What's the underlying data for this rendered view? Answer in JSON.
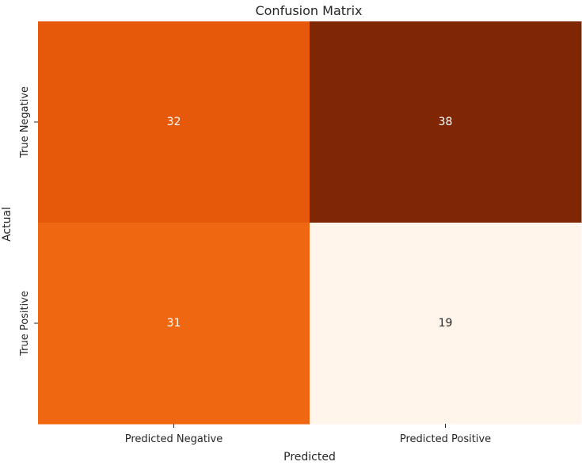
{
  "chart_data": {
    "type": "heatmap",
    "title": "Confusion Matrix",
    "xlabel": "Predicted",
    "ylabel": "Actual",
    "x_categories": [
      "Predicted Negative",
      "Predicted Positive"
    ],
    "y_categories": [
      "True Negative",
      "True Positive"
    ],
    "values": [
      [
        32,
        38
      ],
      [
        31,
        19
      ]
    ],
    "colormap": "Oranges",
    "color_range": [
      19,
      38
    ],
    "colorbar": false,
    "grid": false
  }
}
